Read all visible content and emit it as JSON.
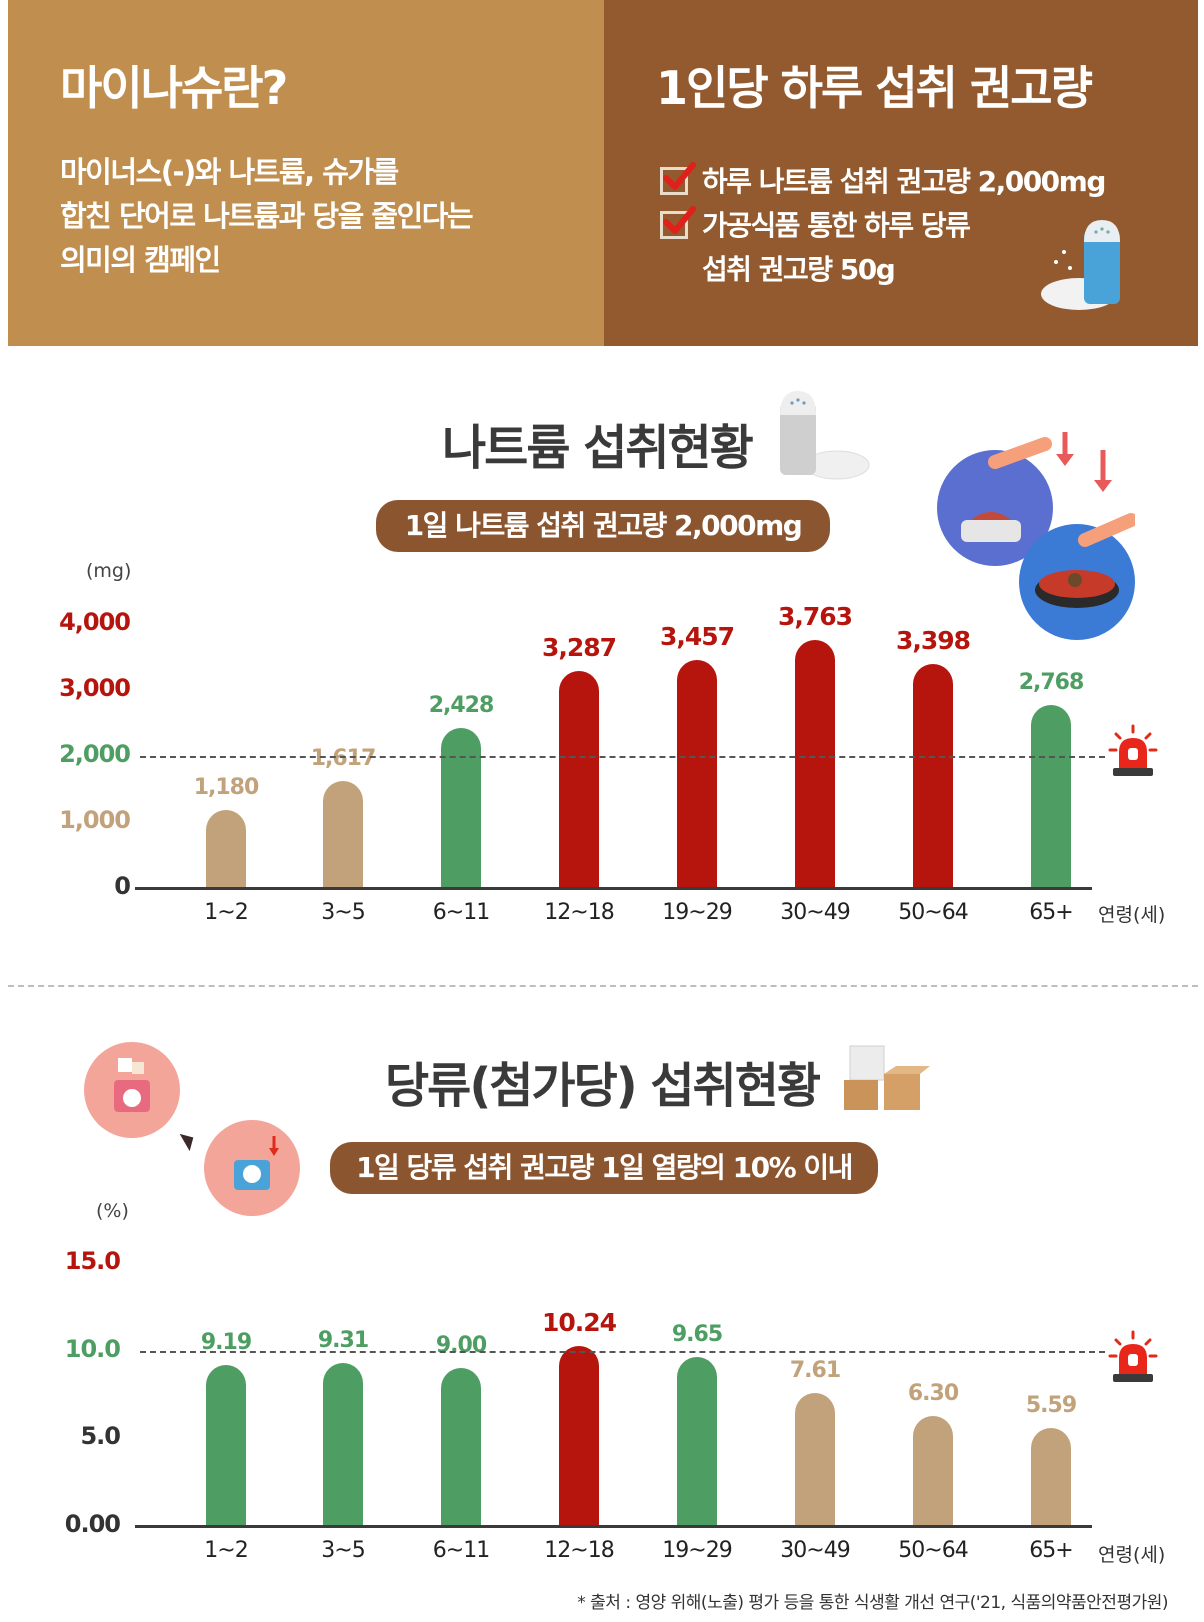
{
  "header": {
    "left_title": "마이나슈란?",
    "left_desc": "마이너스(-)와 나트륨, 슈가를\n합친 단어로 나트륨과 당을 줄인다는\n의미의 캠페인",
    "right_title": "1인당 하루 섭취 권고량",
    "checks": [
      {
        "text": "하루 나트륨 섭취 권고량 2,000mg"
      },
      {
        "text": "가공식품 통한 하루 당류\n섭취 권고량 50g"
      }
    ]
  },
  "sodium": {
    "title": "나트륨 섭취현황",
    "pill": "1일 나트륨 섭취 권고량 2,000mg"
  },
  "sugar": {
    "title": "당류(첨가당) 섭취현황",
    "pill": "1일 당류 섭취 권고량 1일 열량의 10% 이내"
  },
  "source": "* 출처 : 영양 위해(노출) 평가 등을 통한 식생활 개선 연구('21, 식품의약품안전평가원)",
  "colors": {
    "tan": "#c1a27b",
    "green": "#4e9e63",
    "red": "#b5150d",
    "brown": "#8b5530"
  },
  "chart_data": [
    {
      "type": "bar",
      "ylabel": "(mg)",
      "xlabel": "연령(세)",
      "categories": [
        "1~2",
        "3~5",
        "6~11",
        "12~18",
        "19~29",
        "30~49",
        "50~64",
        "65+"
      ],
      "values": [
        1180,
        1617,
        2428,
        3287,
        3457,
        3763,
        3398,
        2768
      ],
      "value_labels": [
        "1,180",
        "1,617",
        "2,428",
        "3,287",
        "3,457",
        "3,763",
        "3,398",
        "2,768"
      ],
      "bar_colors": [
        "#c1a27b",
        "#c1a27b",
        "#4e9e63",
        "#b5150d",
        "#b5150d",
        "#b5150d",
        "#b5150d",
        "#4e9e63"
      ],
      "yticks": [
        {
          "value": 0,
          "label": "0",
          "color": "#333333"
        },
        {
          "value": 1000,
          "label": "1,000",
          "color": "#c1a27b"
        },
        {
          "value": 2000,
          "label": "2,000",
          "color": "#4e9e63"
        },
        {
          "value": 3000,
          "label": "3,000",
          "color": "#b5150d"
        },
        {
          "value": 4000,
          "label": "4,000",
          "color": "#b5150d"
        }
      ],
      "ylim": [
        0,
        4000
      ],
      "reference_line": 2000
    },
    {
      "type": "bar",
      "ylabel": "(%)",
      "xlabel": "연령(세)",
      "categories": [
        "1~2",
        "3~5",
        "6~11",
        "12~18",
        "19~29",
        "30~49",
        "50~64",
        "65+"
      ],
      "values": [
        9.19,
        9.31,
        9.0,
        10.24,
        9.65,
        7.61,
        6.3,
        5.59
      ],
      "value_labels": [
        "9.19",
        "9.31",
        "9.00",
        "10.24",
        "9.65",
        "7.61",
        "6.30",
        "5.59"
      ],
      "bar_colors": [
        "#4e9e63",
        "#4e9e63",
        "#4e9e63",
        "#b5150d",
        "#4e9e63",
        "#c1a27b",
        "#c1a27b",
        "#c1a27b"
      ],
      "yticks": [
        {
          "value": 0,
          "label": "0.00",
          "color": "#333333"
        },
        {
          "value": 5,
          "label": "5.0",
          "color": "#333333"
        },
        {
          "value": 10,
          "label": "10.0",
          "color": "#4e9e63"
        },
        {
          "value": 15,
          "label": "15.0",
          "color": "#b5150d"
        }
      ],
      "ylim": [
        0,
        15
      ],
      "reference_line": 10
    }
  ]
}
